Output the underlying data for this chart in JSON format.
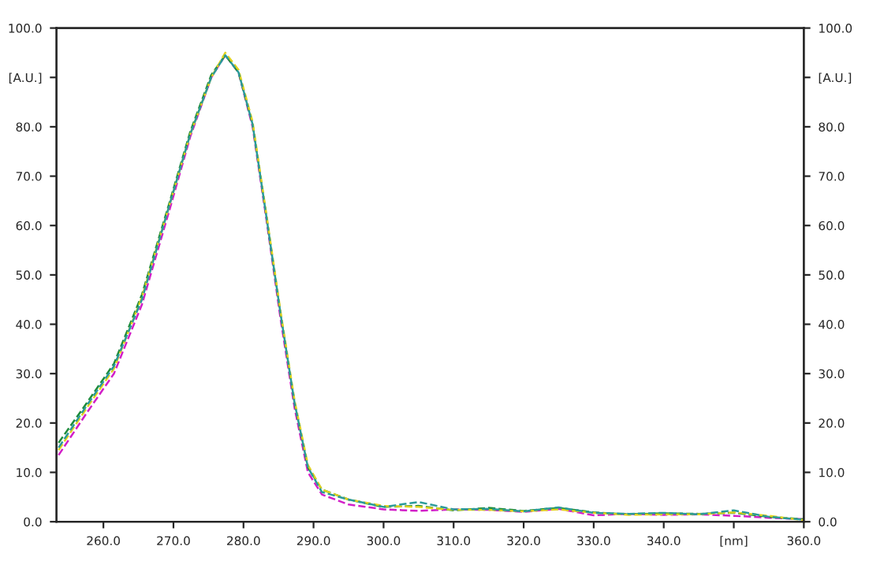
{
  "chart_data": {
    "type": "line",
    "x": [
      253.6,
      257.6,
      261.5,
      265.5,
      269.4,
      272.4,
      275.4,
      277.4,
      279.3,
      281.3,
      283.3,
      285.3,
      287.3,
      289.2,
      291.2,
      295,
      300,
      305,
      310,
      315,
      320,
      325,
      330,
      335,
      340,
      345,
      350,
      355,
      360
    ],
    "series": [
      {
        "color": "#d21fc8",
        "values": [
          13.5,
          22,
          30,
          44,
          63,
          78,
          90,
          94.5,
          91,
          80,
          61,
          41,
          23,
          10,
          5.5,
          3.5,
          2.5,
          2.2,
          2.5,
          2.4,
          2,
          2.6,
          1.3,
          1.6,
          1.4,
          1.5,
          1.2,
          0.8,
          0.5
        ]
      },
      {
        "color": "#1e8c3a",
        "values": [
          16,
          24,
          32,
          46,
          64.5,
          79,
          90.5,
          94.5,
          91,
          80.5,
          61.5,
          42,
          24,
          11,
          6.5,
          4.5,
          3,
          3.2,
          2.3,
          2.8,
          2.2,
          2.8,
          1.9,
          1.5,
          1.7,
          1.6,
          1.8,
          1,
          0.5
        ]
      },
      {
        "color": "#e1d21e",
        "values": [
          14.5,
          23,
          31,
          45.5,
          64,
          78.5,
          90,
          95,
          91.5,
          81,
          62,
          42.5,
          24.5,
          11.5,
          6.5,
          4.5,
          3.2,
          3,
          2.4,
          2.4,
          2.1,
          2.5,
          1.8,
          1.4,
          1.5,
          1.5,
          1.9,
          1.2,
          0.3
        ]
      },
      {
        "color": "#2a9a9a",
        "values": [
          15,
          23.5,
          31.5,
          45,
          64,
          78.5,
          90,
          94.5,
          91,
          80.5,
          61.5,
          42,
          24,
          11,
          6,
          4.5,
          3,
          4,
          2.5,
          2.6,
          2.1,
          2.9,
          1.8,
          1.6,
          1.8,
          1.5,
          2.3,
          1,
          0.4
        ]
      }
    ],
    "xlim": [
      253.3,
      360
    ],
    "xticks": [
      {
        "value": 260,
        "label": "260.0"
      },
      {
        "value": 270,
        "label": "270.0"
      },
      {
        "value": 280,
        "label": "280.0"
      },
      {
        "value": 290,
        "label": "290.0"
      },
      {
        "value": 300,
        "label": "300.0"
      },
      {
        "value": 310,
        "label": "310.0"
      },
      {
        "value": 320,
        "label": "320.0"
      },
      {
        "value": 330,
        "label": "330.0"
      },
      {
        "value": 340,
        "label": "340.0"
      },
      {
        "value": 350,
        "label": "[nm]"
      },
      {
        "value": 360,
        "label": "360.0"
      }
    ],
    "ylim": [
      0,
      100
    ],
    "yticks": [
      {
        "value": 0,
        "label": "0.0"
      },
      {
        "value": 10,
        "label": "10.0"
      },
      {
        "value": 20,
        "label": "20.0"
      },
      {
        "value": 30,
        "label": "30.0"
      },
      {
        "value": 40,
        "label": "40.0"
      },
      {
        "value": 50,
        "label": "50.0"
      },
      {
        "value": 60,
        "label": "60.0"
      },
      {
        "value": 70,
        "label": "70.0"
      },
      {
        "value": 80,
        "label": "80.0"
      },
      {
        "value": 90,
        "label": "[A.U.]"
      },
      {
        "value": 100,
        "label": "100.0"
      }
    ],
    "y2lim": [
      0,
      100
    ],
    "y2ticks": [
      {
        "value": 0,
        "label": "0.0"
      },
      {
        "value": 10,
        "label": "10.0"
      },
      {
        "value": 20,
        "label": "20.0"
      },
      {
        "value": 30,
        "label": "30.0"
      },
      {
        "value": 40,
        "label": "40.0"
      },
      {
        "value": 50,
        "label": "50.0"
      },
      {
        "value": 60,
        "label": "60.0"
      },
      {
        "value": 70,
        "label": "70.0"
      },
      {
        "value": 80,
        "label": "80.0"
      },
      {
        "value": 90,
        "label": "[A.U.]"
      },
      {
        "value": 100,
        "label": "100.0"
      }
    ],
    "line_style": "dashed",
    "grid": false,
    "legend": false
  }
}
